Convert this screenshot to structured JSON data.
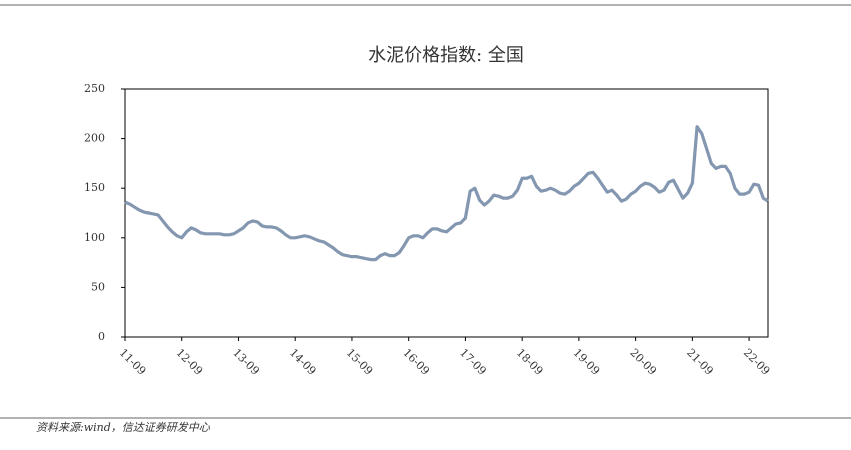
{
  "chart_data": {
    "type": "line",
    "title": "水泥价格指数: 全国",
    "source": "资料来源:wind，信达证券研发中心",
    "categories": [
      "11-09",
      null,
      null,
      null,
      null,
      null,
      null,
      null,
      null,
      null,
      null,
      null,
      "12-09",
      null,
      null,
      null,
      null,
      null,
      null,
      null,
      null,
      null,
      null,
      null,
      "13-09",
      null,
      null,
      null,
      null,
      null,
      null,
      null,
      null,
      null,
      null,
      null,
      "14-09",
      null,
      null,
      null,
      null,
      null,
      null,
      null,
      null,
      null,
      null,
      null,
      "15-09",
      null,
      null,
      null,
      null,
      null,
      null,
      null,
      null,
      null,
      null,
      null,
      "16-09",
      null,
      null,
      null,
      null,
      null,
      null,
      null,
      null,
      null,
      null,
      null,
      "17-09",
      null,
      null,
      null,
      null,
      null,
      null,
      null,
      null,
      null,
      null,
      null,
      "18-09",
      null,
      null,
      null,
      null,
      null,
      null,
      null,
      null,
      null,
      null,
      null,
      "19-09",
      null,
      null,
      null,
      null,
      null,
      null,
      null,
      null,
      null,
      null,
      null,
      "20-09",
      null,
      null,
      null,
      null,
      null,
      null,
      null,
      null,
      null,
      null,
      null,
      "21-09",
      null,
      null,
      null,
      null,
      null,
      null,
      null,
      null,
      null,
      null,
      null,
      "22-09",
      null,
      null,
      null,
      null
    ],
    "values": [
      136,
      134,
      131,
      128,
      126,
      125,
      124,
      123,
      117,
      111,
      106,
      102,
      100,
      106,
      110,
      108,
      105,
      104,
      104,
      104,
      104,
      103,
      103,
      104,
      107,
      110,
      115,
      117,
      116,
      112,
      111,
      111,
      110,
      107,
      103,
      100,
      100,
      101,
      102,
      101,
      99,
      97,
      96,
      93,
      90,
      86,
      83,
      82,
      81,
      81,
      80,
      79,
      78,
      78,
      82,
      84,
      82,
      82,
      85,
      92,
      100,
      102,
      102,
      100,
      105,
      109,
      109,
      107,
      106,
      110,
      114,
      115,
      120,
      147,
      150,
      138,
      133,
      137,
      143,
      142,
      140,
      140,
      142,
      148,
      160,
      160,
      162,
      152,
      147,
      148,
      150,
      148,
      145,
      144,
      147,
      152,
      155,
      160,
      165,
      166,
      160,
      153,
      146,
      148,
      143,
      137,
      139,
      144,
      147,
      152,
      155,
      154,
      151,
      146,
      148,
      156,
      158,
      149,
      140,
      145,
      155,
      212,
      205,
      190,
      175,
      170,
      172,
      172,
      165,
      150,
      144,
      144,
      146,
      154,
      153,
      140,
      137
    ],
    "color": "#8497b0",
    "ylim": [
      0,
      250
    ],
    "yticks": [
      0,
      50,
      100,
      150,
      200,
      250
    ]
  }
}
